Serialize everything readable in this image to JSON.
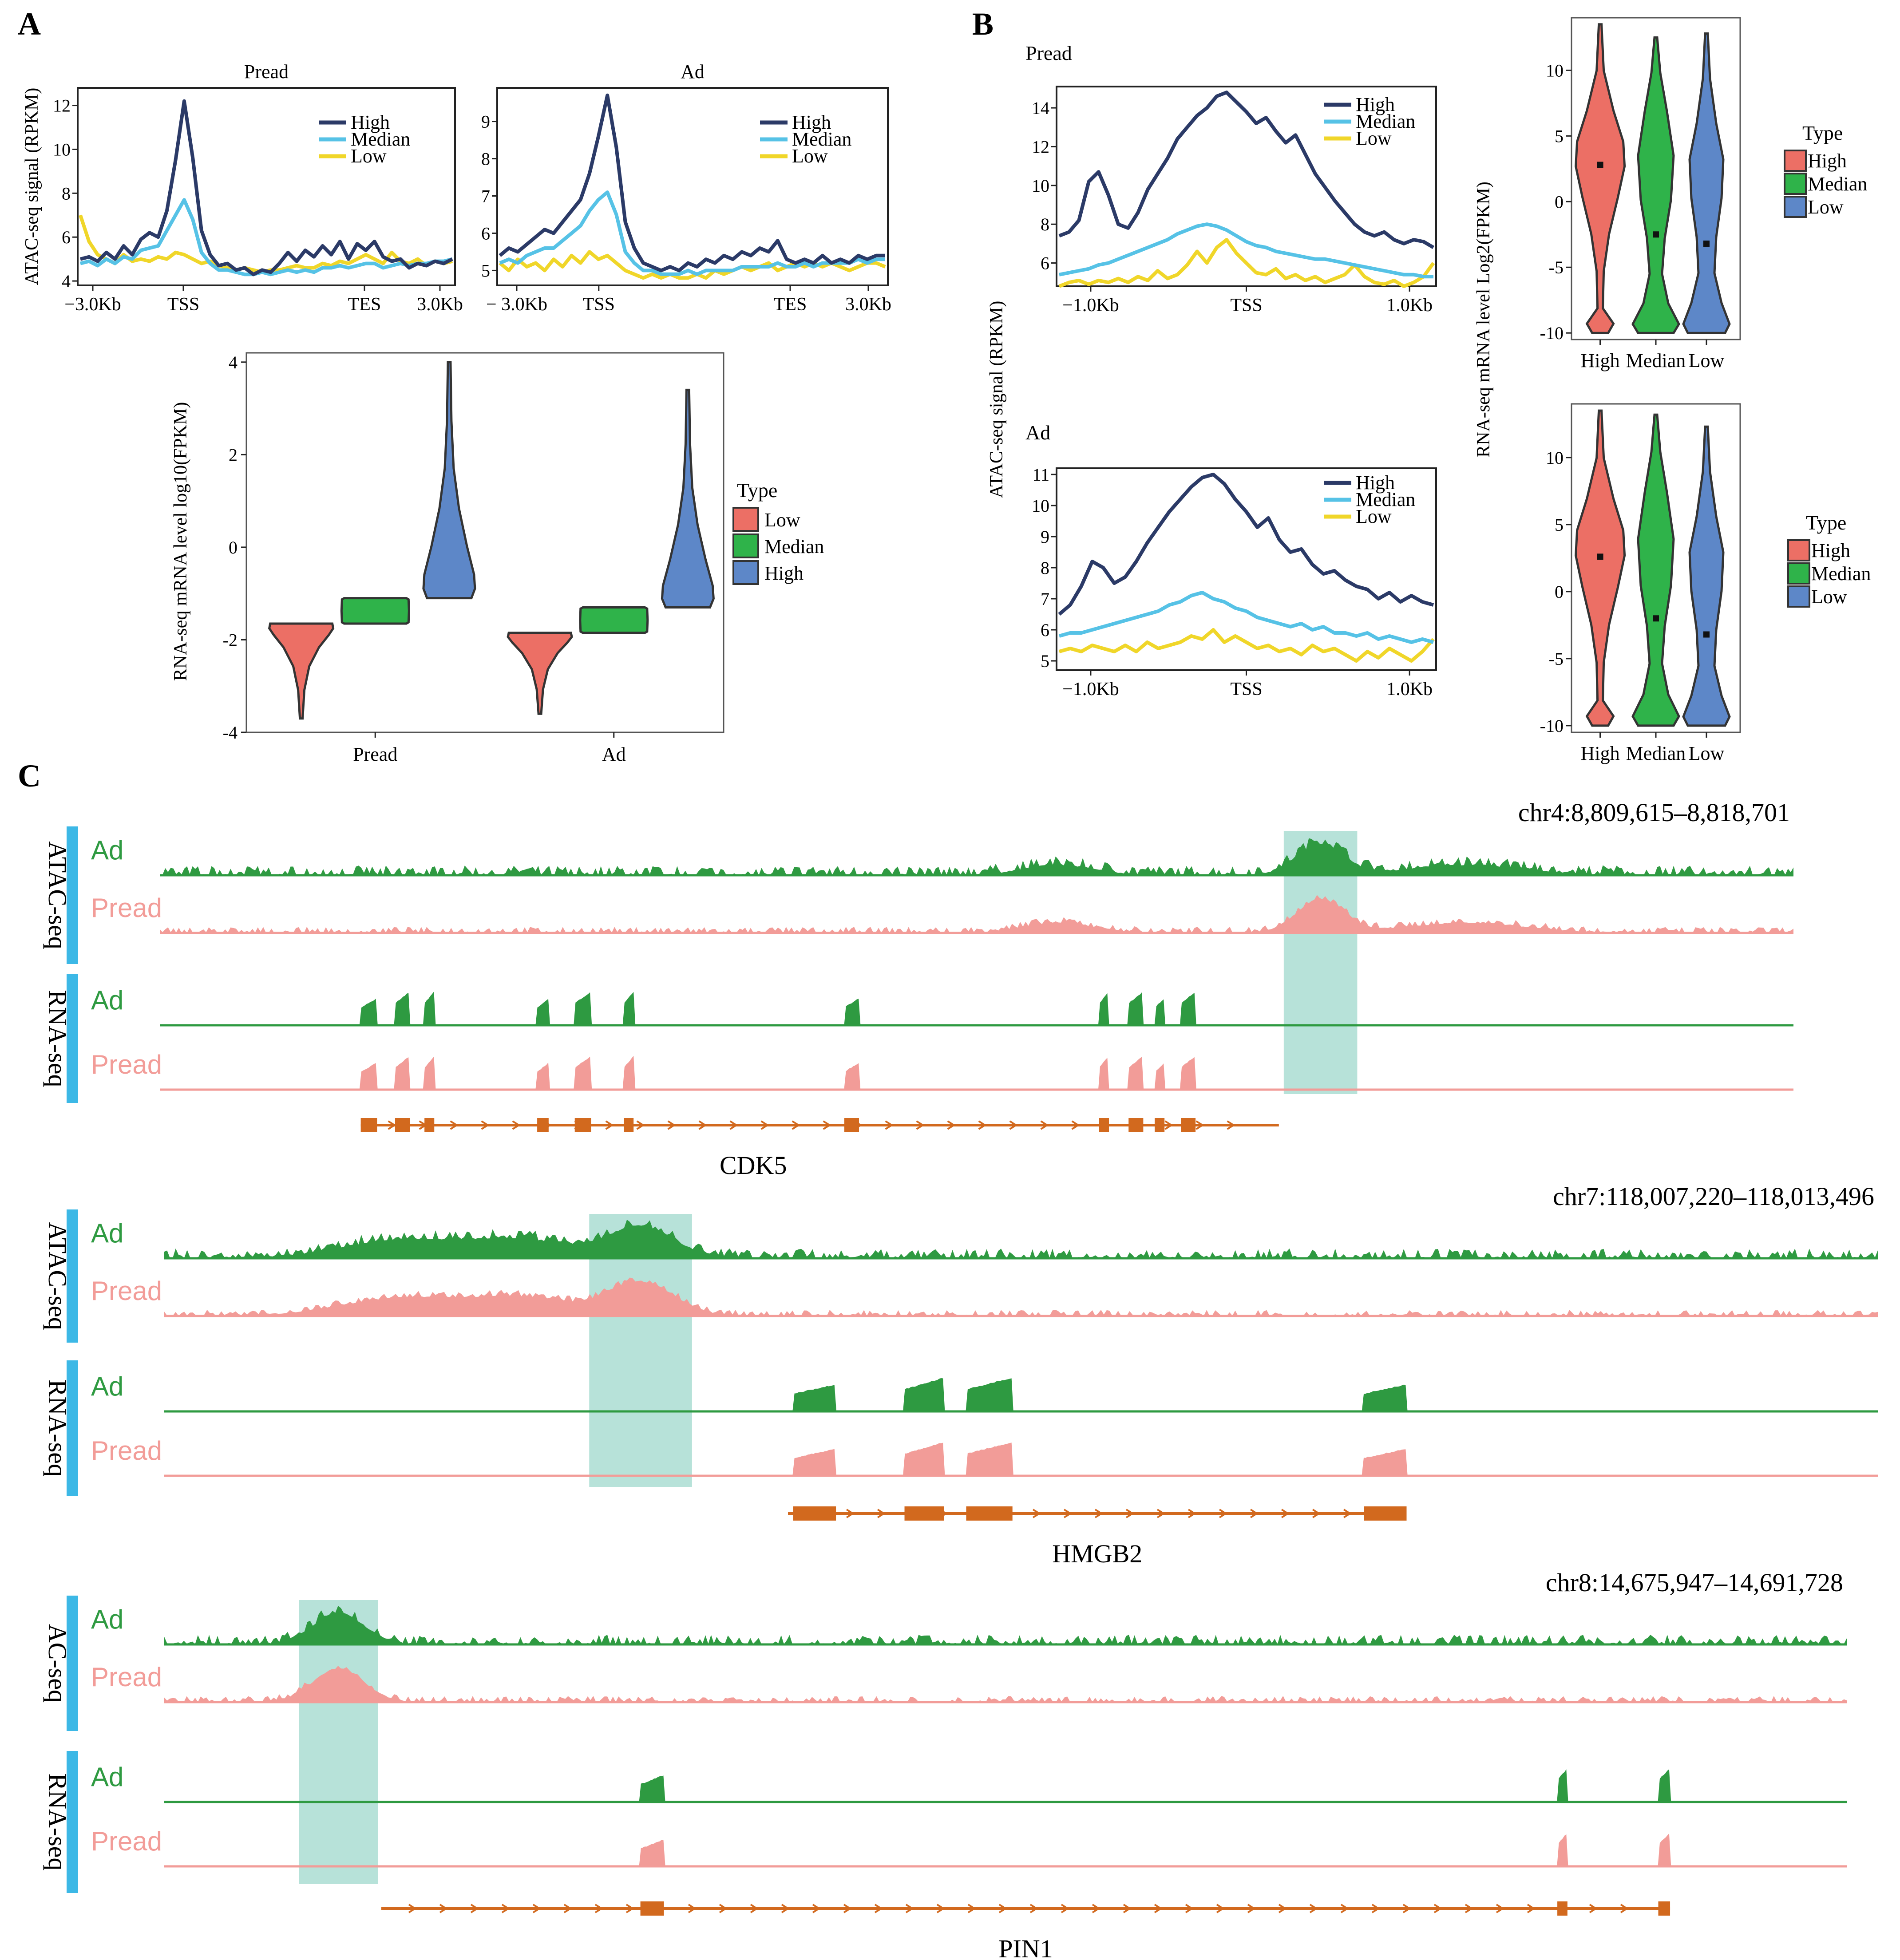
{
  "colors": {
    "high": "#2b3a67",
    "median": "#56c2e6",
    "low": "#f0d629",
    "v_red": "#ec6f65",
    "v_green": "#2fb34a",
    "v_blue": "#5d87c8",
    "ad_track": "#2e9a41",
    "pread_track": "#f29c98",
    "highlight": "#9fd8cc",
    "gene": "#d2691e",
    "side_bar": "#3cb8e6"
  },
  "panels": {
    "a": "A",
    "b": "B",
    "c": "C"
  },
  "chart_data": [
    {
      "id": "a1",
      "type": "line",
      "title": "Pread",
      "ylabel": "ATAC-seq signal (RPKM)",
      "x_ticks": [
        "−3.0Kb",
        "TSS",
        "TES",
        "3.0Kb"
      ],
      "y_ticks": [
        4,
        6,
        8,
        10,
        12
      ],
      "ylim": [
        3.8,
        12.8
      ],
      "legend": [
        "High",
        "Median",
        "Low"
      ],
      "series": [
        {
          "name": "High",
          "values": [
            5.0,
            5.1,
            4.9,
            5.3,
            5.0,
            5.6,
            5.2,
            5.9,
            6.2,
            6.0,
            7.2,
            9.5,
            12.2,
            9.6,
            6.3,
            5.2,
            4.7,
            4.8,
            4.5,
            4.6,
            4.3,
            4.5,
            4.4,
            4.8,
            5.3,
            4.9,
            5.4,
            5.1,
            5.6,
            5.2,
            5.8,
            5.0,
            5.7,
            5.4,
            5.8,
            5.1,
            4.9,
            5.0,
            4.6,
            4.8,
            4.7,
            4.9,
            4.8,
            5.0
          ]
        },
        {
          "name": "Median",
          "values": [
            4.8,
            4.9,
            4.7,
            5.0,
            4.8,
            5.1,
            5.0,
            5.4,
            5.5,
            5.6,
            6.3,
            7.0,
            7.7,
            6.8,
            5.3,
            4.8,
            4.5,
            4.5,
            4.4,
            4.3,
            4.3,
            4.4,
            4.3,
            4.4,
            4.5,
            4.4,
            4.5,
            4.4,
            4.6,
            4.6,
            4.7,
            4.6,
            4.7,
            4.8,
            4.8,
            4.6,
            4.7,
            4.8,
            4.7,
            4.8,
            4.8,
            4.9,
            4.9,
            5.0
          ]
        },
        {
          "name": "Low",
          "values": [
            7.0,
            5.8,
            5.2,
            5.0,
            4.8,
            5.2,
            4.9,
            5.0,
            4.9,
            5.1,
            5.0,
            5.3,
            5.2,
            5.0,
            4.8,
            4.9,
            4.7,
            4.6,
            4.5,
            4.6,
            4.5,
            4.4,
            4.5,
            4.5,
            4.6,
            4.7,
            4.6,
            4.6,
            4.8,
            4.7,
            4.9,
            4.8,
            5.0,
            5.2,
            5.0,
            4.8,
            5.3,
            4.9,
            4.8,
            5.0,
            4.7,
            4.9,
            4.8,
            4.9
          ]
        }
      ]
    },
    {
      "id": "a2",
      "type": "line",
      "title": "Ad",
      "ylabel": "",
      "x_ticks": [
        "− 3.0Kb",
        "TSS",
        "TES",
        "3.0Kb"
      ],
      "y_ticks": [
        5,
        6,
        7,
        8,
        9
      ],
      "ylim": [
        4.6,
        9.9
      ],
      "legend": [
        "High",
        "Median",
        "Low"
      ],
      "series": [
        {
          "name": "High",
          "values": [
            5.4,
            5.6,
            5.5,
            5.7,
            5.9,
            6.1,
            6.0,
            6.3,
            6.6,
            6.9,
            7.6,
            8.6,
            9.7,
            8.3,
            6.3,
            5.6,
            5.2,
            5.1,
            5.0,
            5.1,
            5.0,
            5.2,
            5.1,
            5.3,
            5.2,
            5.4,
            5.3,
            5.5,
            5.4,
            5.6,
            5.5,
            5.8,
            5.3,
            5.2,
            5.3,
            5.2,
            5.4,
            5.2,
            5.3,
            5.2,
            5.4,
            5.3,
            5.4,
            5.4
          ]
        },
        {
          "name": "Median",
          "values": [
            5.2,
            5.3,
            5.2,
            5.4,
            5.5,
            5.6,
            5.6,
            5.8,
            6.0,
            6.2,
            6.6,
            6.9,
            7.1,
            6.5,
            5.5,
            5.2,
            5.0,
            5.0,
            4.9,
            4.9,
            4.9,
            5.0,
            4.9,
            5.0,
            5.0,
            5.0,
            5.0,
            5.1,
            5.1,
            5.1,
            5.1,
            5.2,
            5.1,
            5.1,
            5.2,
            5.1,
            5.2,
            5.2,
            5.2,
            5.2,
            5.3,
            5.2,
            5.3,
            5.3
          ]
        },
        {
          "name": "Low",
          "values": [
            5.2,
            5.0,
            5.3,
            5.1,
            5.2,
            5.0,
            5.3,
            5.1,
            5.4,
            5.2,
            5.5,
            5.3,
            5.4,
            5.2,
            5.0,
            4.9,
            4.8,
            4.9,
            4.8,
            4.9,
            4.8,
            4.8,
            4.9,
            4.8,
            5.0,
            4.9,
            5.0,
            5.1,
            5.0,
            5.1,
            5.2,
            5.0,
            5.1,
            5.2,
            5.1,
            5.2,
            5.1,
            5.2,
            5.1,
            5.0,
            5.1,
            5.2,
            5.2,
            5.1
          ]
        }
      ]
    },
    {
      "id": "a3",
      "type": "violin",
      "ylabel": "RNA-seq mRNA level log10(FPKM)",
      "y_ticks": [
        -4,
        -2,
        0,
        2,
        4
      ],
      "ylim": [
        -4,
        4.2
      ],
      "groups": [
        "Pread",
        "Ad"
      ],
      "legend_title": "Type",
      "legend": [
        "Low",
        "Median",
        "High"
      ],
      "violins": [
        {
          "group": "Pread",
          "type": "Low",
          "min": -3.7,
          "max": -1.65,
          "center": -1.8
        },
        {
          "group": "Pread",
          "type": "Median",
          "min": -1.65,
          "max": -1.1,
          "center": -1.35
        },
        {
          "group": "Pread",
          "type": "High",
          "min": -1.1,
          "max": 4.0,
          "center": -0.6
        },
        {
          "group": "Ad",
          "type": "Low",
          "min": -3.6,
          "max": -1.85,
          "center": -2.0
        },
        {
          "group": "Ad",
          "type": "Median",
          "min": -1.85,
          "max": -1.3,
          "center": -1.6
        },
        {
          "group": "Ad",
          "type": "High",
          "min": -1.3,
          "max": 3.4,
          "center": -0.8
        }
      ]
    },
    {
      "id": "b1",
      "type": "line",
      "title": "Pread",
      "ylabel": "ATAC-seq signal (RPKM)",
      "x_ticks": [
        "−1.0Kb",
        "TSS",
        "1.0Kb"
      ],
      "y_ticks": [
        6,
        8,
        10,
        12,
        14
      ],
      "ylim": [
        4.8,
        15.1
      ],
      "legend": [
        "High",
        "Median",
        "Low"
      ],
      "series": [
        {
          "name": "High",
          "values": [
            7.4,
            7.6,
            8.2,
            10.2,
            10.7,
            9.5,
            8.0,
            7.8,
            8.6,
            9.8,
            10.6,
            11.4,
            12.4,
            13.0,
            13.6,
            14.0,
            14.6,
            14.8,
            14.3,
            13.8,
            13.2,
            13.5,
            12.8,
            12.2,
            12.6,
            11.6,
            10.6,
            9.9,
            9.2,
            8.6,
            8.0,
            7.6,
            7.4,
            7.6,
            7.2,
            7.0,
            7.2,
            7.1,
            6.8
          ]
        },
        {
          "name": "Median",
          "values": [
            5.4,
            5.5,
            5.6,
            5.7,
            5.9,
            6.0,
            6.2,
            6.4,
            6.6,
            6.8,
            7.0,
            7.2,
            7.5,
            7.7,
            7.9,
            8.0,
            7.9,
            7.7,
            7.4,
            7.1,
            6.9,
            6.8,
            6.6,
            6.5,
            6.4,
            6.3,
            6.2,
            6.2,
            6.1,
            6.0,
            5.9,
            5.8,
            5.7,
            5.6,
            5.5,
            5.4,
            5.4,
            5.3,
            5.3
          ]
        },
        {
          "name": "Low",
          "values": [
            4.8,
            5.0,
            5.1,
            4.9,
            5.1,
            5.0,
            5.2,
            5.0,
            5.3,
            5.1,
            5.6,
            5.2,
            5.4,
            5.9,
            6.6,
            6.0,
            6.8,
            7.2,
            6.5,
            6.0,
            5.5,
            5.4,
            5.7,
            5.2,
            5.4,
            5.1,
            5.3,
            5.0,
            5.2,
            5.4,
            5.9,
            5.3,
            5.0,
            4.9,
            5.1,
            4.8,
            5.0,
            5.3,
            6.0
          ]
        }
      ]
    },
    {
      "id": "b2",
      "type": "line",
      "title": "Ad",
      "ylabel": "",
      "x_ticks": [
        "−1.0Kb",
        "TSS",
        "1.0Kb"
      ],
      "y_ticks": [
        5,
        6,
        7,
        8,
        9,
        10,
        11
      ],
      "ylim": [
        4.7,
        11.2
      ],
      "legend": [
        "High",
        "Median",
        "Low"
      ],
      "series": [
        {
          "name": "High",
          "values": [
            6.5,
            6.8,
            7.4,
            8.2,
            8.0,
            7.5,
            7.7,
            8.2,
            8.8,
            9.3,
            9.8,
            10.2,
            10.6,
            10.9,
            11.0,
            10.7,
            10.2,
            9.8,
            9.3,
            9.6,
            8.9,
            8.5,
            8.6,
            8.1,
            7.8,
            7.9,
            7.6,
            7.4,
            7.3,
            7.0,
            7.2,
            6.9,
            7.1,
            6.9,
            6.8
          ]
        },
        {
          "name": "Median",
          "values": [
            5.8,
            5.9,
            5.9,
            6.0,
            6.1,
            6.2,
            6.3,
            6.4,
            6.5,
            6.6,
            6.8,
            6.9,
            7.1,
            7.2,
            7.0,
            6.9,
            6.7,
            6.6,
            6.4,
            6.3,
            6.2,
            6.1,
            6.2,
            6.0,
            6.1,
            5.9,
            5.9,
            5.8,
            5.9,
            5.7,
            5.8,
            5.7,
            5.6,
            5.7,
            5.6
          ]
        },
        {
          "name": "Low",
          "values": [
            5.3,
            5.4,
            5.3,
            5.5,
            5.4,
            5.3,
            5.5,
            5.3,
            5.6,
            5.4,
            5.5,
            5.6,
            5.8,
            5.7,
            6.0,
            5.6,
            5.8,
            5.6,
            5.4,
            5.5,
            5.3,
            5.4,
            5.2,
            5.5,
            5.3,
            5.4,
            5.2,
            5.0,
            5.3,
            5.1,
            5.4,
            5.2,
            5.0,
            5.3,
            5.7
          ]
        }
      ]
    },
    {
      "id": "b3",
      "type": "violin",
      "ylabel": "RNA-seq mRNA level Log2(FPKM)",
      "y_ticks": [
        -10,
        -5,
        0,
        5,
        10
      ],
      "ylim": [
        -10.5,
        14
      ],
      "groups": [
        "High",
        "Median",
        "Low"
      ],
      "legend_title": "Type",
      "legend": [
        "High",
        "Median",
        "Low"
      ],
      "violins": [
        {
          "group": "High",
          "type": "High",
          "min": -10,
          "max": 13.5,
          "median": 2.8
        },
        {
          "group": "Median",
          "type": "Median",
          "min": -10,
          "max": 12.5,
          "median": -2.5
        },
        {
          "group": "Low",
          "type": "Low",
          "min": -10,
          "max": 12.8,
          "median": -3.2
        }
      ]
    },
    {
      "id": "b4",
      "type": "violin",
      "ylabel": "",
      "y_ticks": [
        -10,
        -5,
        0,
        5,
        10
      ],
      "ylim": [
        -10.5,
        14
      ],
      "groups": [
        "High",
        "Median",
        "Low"
      ],
      "legend_title": "Type",
      "legend": [
        "High",
        "Median",
        "Low"
      ],
      "violins": [
        {
          "group": "High",
          "type": "High",
          "min": -10,
          "max": 13.5,
          "median": 2.6
        },
        {
          "group": "Median",
          "type": "Median",
          "min": -10,
          "max": 13.2,
          "median": -2.0
        },
        {
          "group": "Low",
          "type": "Low",
          "min": -10,
          "max": 12.3,
          "median": -3.2
        }
      ]
    }
  ],
  "genome_tracks": [
    {
      "coord": "chr4:8,809,615–8,818,701",
      "gene": "CDK5",
      "atac_label": "ATAC-seq",
      "rna_label": "RNA-seq",
      "ad_label": "Ad",
      "pread_label": "Pread",
      "highlight": [
        0.688,
        0.733
      ],
      "gene_span": [
        0.123,
        0.685
      ],
      "exons": [
        [
          0.123,
          0.133
        ],
        [
          0.144,
          0.153
        ],
        [
          0.162,
          0.168
        ],
        [
          0.231,
          0.238
        ],
        [
          0.254,
          0.264
        ],
        [
          0.284,
          0.29
        ],
        [
          0.419,
          0.428
        ],
        [
          0.575,
          0.581
        ],
        [
          0.593,
          0.602
        ],
        [
          0.609,
          0.615
        ],
        [
          0.625,
          0.634
        ]
      ]
    },
    {
      "coord": "chr7:118,007,220–118,013,496",
      "gene": "HMGB2",
      "atac_label": "ATAC-seq",
      "rna_label": "RNA-seq",
      "ad_label": "Ad",
      "pread_label": "Pread",
      "highlight": [
        0.248,
        0.308
      ],
      "gene_span": [
        0.364,
        0.725
      ],
      "exons": [
        [
          0.367,
          0.392
        ],
        [
          0.432,
          0.455
        ],
        [
          0.468,
          0.495
        ],
        [
          0.7,
          0.725
        ]
      ]
    },
    {
      "coord": "chr8:14,675,947–14,691,728",
      "gene": "PIN1",
      "atac_label": "AC-seq",
      "rna_label": "RNA-seq",
      "ad_label": "Ad",
      "pread_label": "Pread",
      "highlight": [
        0.08,
        0.127
      ],
      "gene_span": [
        0.129,
        0.895
      ],
      "exons": [
        [
          0.283,
          0.297
        ],
        [
          0.828,
          0.834
        ],
        [
          0.888,
          0.895
        ]
      ]
    }
  ]
}
